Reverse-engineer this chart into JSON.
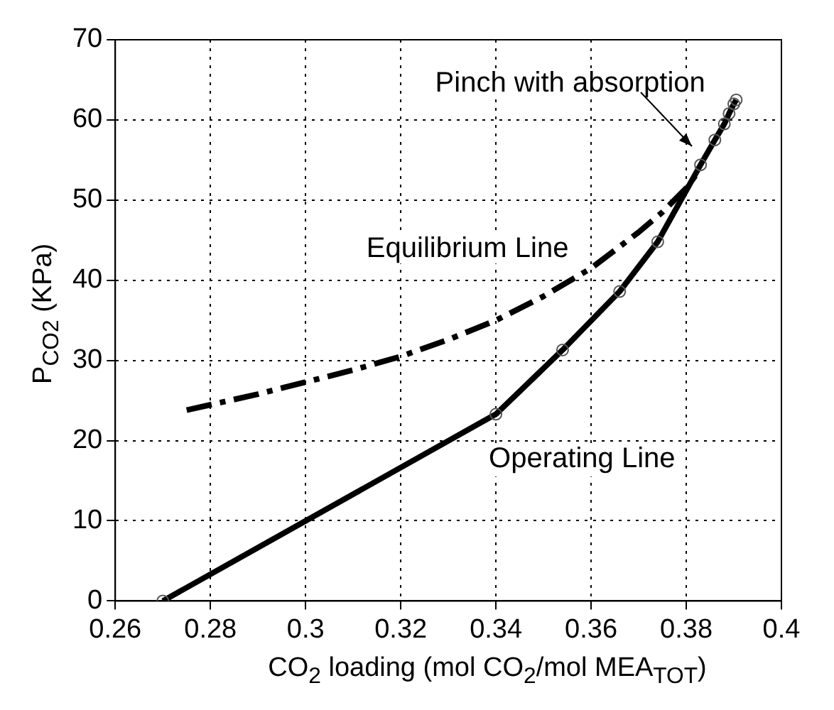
{
  "chart_data": {
    "type": "line",
    "xlabel": "CO$_{2}$ loading (mol CO$_{2}$/mol MEA$_{TOT}$)",
    "ylabel": "P$_{CO2}$ (KPa)",
    "xlim": [
      0.26,
      0.4
    ],
    "xticks": [
      0.26,
      0.28,
      0.3,
      0.32,
      0.34,
      0.36,
      0.38,
      0.4
    ],
    "ylim": [
      0,
      70
    ],
    "yticks": [
      0,
      10,
      20,
      30,
      40,
      50,
      60,
      70
    ],
    "grid": true,
    "legend": false,
    "series": [
      {
        "name": "Equilibrium Line",
        "color": "#000000",
        "line_style": "dashed",
        "marker": "none",
        "x": [
          0.275,
          0.29,
          0.3,
          0.31,
          0.32,
          0.33,
          0.34,
          0.35,
          0.36,
          0.37,
          0.375,
          0.38,
          0.3825
        ],
        "values": [
          23.8,
          25.8,
          27.3,
          28.8,
          30.5,
          32.6,
          35,
          38,
          41.5,
          46,
          48.5,
          51.5,
          53.5
        ]
      },
      {
        "name": "Operating Line",
        "color": "#000000",
        "line_style": "solid",
        "marker": "circle",
        "x": [
          0.27,
          0.34,
          0.354,
          0.366,
          0.374,
          0.383,
          0.386,
          0.388,
          0.389,
          0.39,
          0.3905
        ],
        "values": [
          0,
          23.3,
          31.3,
          38.6,
          44.8,
          54.4,
          57.5,
          59.5,
          60.8,
          62,
          62.5
        ]
      }
    ],
    "annotations": [
      {
        "text": "Pinch with absorption",
        "x": 0.3825,
        "y": 56
      }
    ]
  }
}
